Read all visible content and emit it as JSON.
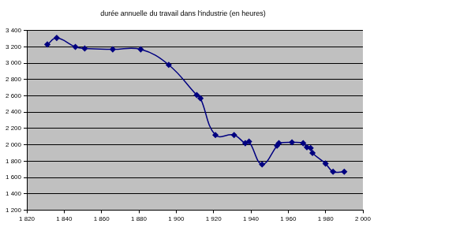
{
  "chart_data": {
    "type": "line",
    "title": "durée annuelle du travail dans l'industrie (en heures)",
    "x": [
      1831,
      1836,
      1846,
      1851,
      1866,
      1881,
      1896,
      1911,
      1913,
      1921,
      1931,
      1937,
      1939,
      1946,
      1954,
      1955,
      1962,
      1968,
      1970,
      1972,
      1973,
      1980,
      1984,
      1990
    ],
    "values": [
      3230,
      3310,
      3200,
      3180,
      3170,
      3170,
      2980,
      2610,
      2570,
      2120,
      2120,
      2020,
      2040,
      1760,
      1990,
      2020,
      2030,
      2020,
      1970,
      1960,
      1900,
      1770,
      1670,
      1670
    ],
    "color": "#000080",
    "marker": "diamond",
    "line_style": "smooth",
    "xlim": [
      1820,
      2000
    ],
    "xticks": [
      {
        "value": 1820,
        "label": "1 820"
      },
      {
        "value": 1840,
        "label": "1 840"
      },
      {
        "value": 1860,
        "label": "1 860"
      },
      {
        "value": 1880,
        "label": "1 880"
      },
      {
        "value": 1900,
        "label": "1 900"
      },
      {
        "value": 1920,
        "label": "1 920"
      },
      {
        "value": 1940,
        "label": "1 940"
      },
      {
        "value": 1960,
        "label": "1 960"
      },
      {
        "value": 1980,
        "label": "1 980"
      },
      {
        "value": 2000,
        "label": "2 000"
      }
    ],
    "ylim": [
      1200,
      3400
    ],
    "yticks": [
      {
        "value": 1200,
        "label": "1 200"
      },
      {
        "value": 1400,
        "label": "1 400"
      },
      {
        "value": 1600,
        "label": "1 600"
      },
      {
        "value": 1800,
        "label": "1 800"
      },
      {
        "value": 2000,
        "label": "2 000"
      },
      {
        "value": 2200,
        "label": "2 200"
      },
      {
        "value": 2400,
        "label": "2 400"
      },
      {
        "value": 2600,
        "label": "2 600"
      },
      {
        "value": 2800,
        "label": "2 800"
      },
      {
        "value": 3000,
        "label": "3 000"
      },
      {
        "value": 3200,
        "label": "3 200"
      },
      {
        "value": 3400,
        "label": "3 400"
      }
    ],
    "grid": true
  }
}
